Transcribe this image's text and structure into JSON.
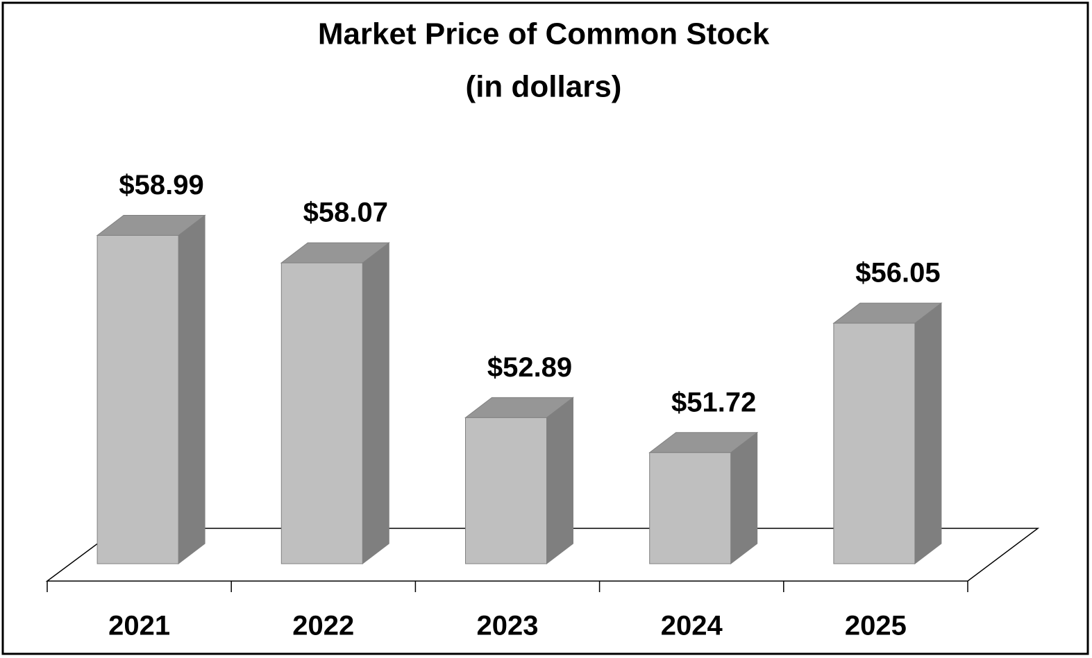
{
  "chart_data": {
    "type": "bar3d",
    "title": "Market Price of Common Stock",
    "subtitle": "(in dollars)",
    "categories": [
      "2021",
      "2022",
      "2023",
      "2024",
      "2025"
    ],
    "values": [
      58.99,
      58.07,
      52.89,
      51.72,
      56.05
    ],
    "value_labels": [
      "$58.99",
      "$58.07",
      "$52.89",
      "$51.72",
      "$56.05"
    ],
    "colors": {
      "front": "#bfbfbf",
      "top": "#969696",
      "side": "#7f7f7f"
    },
    "ylim": [
      48,
      60
    ]
  }
}
